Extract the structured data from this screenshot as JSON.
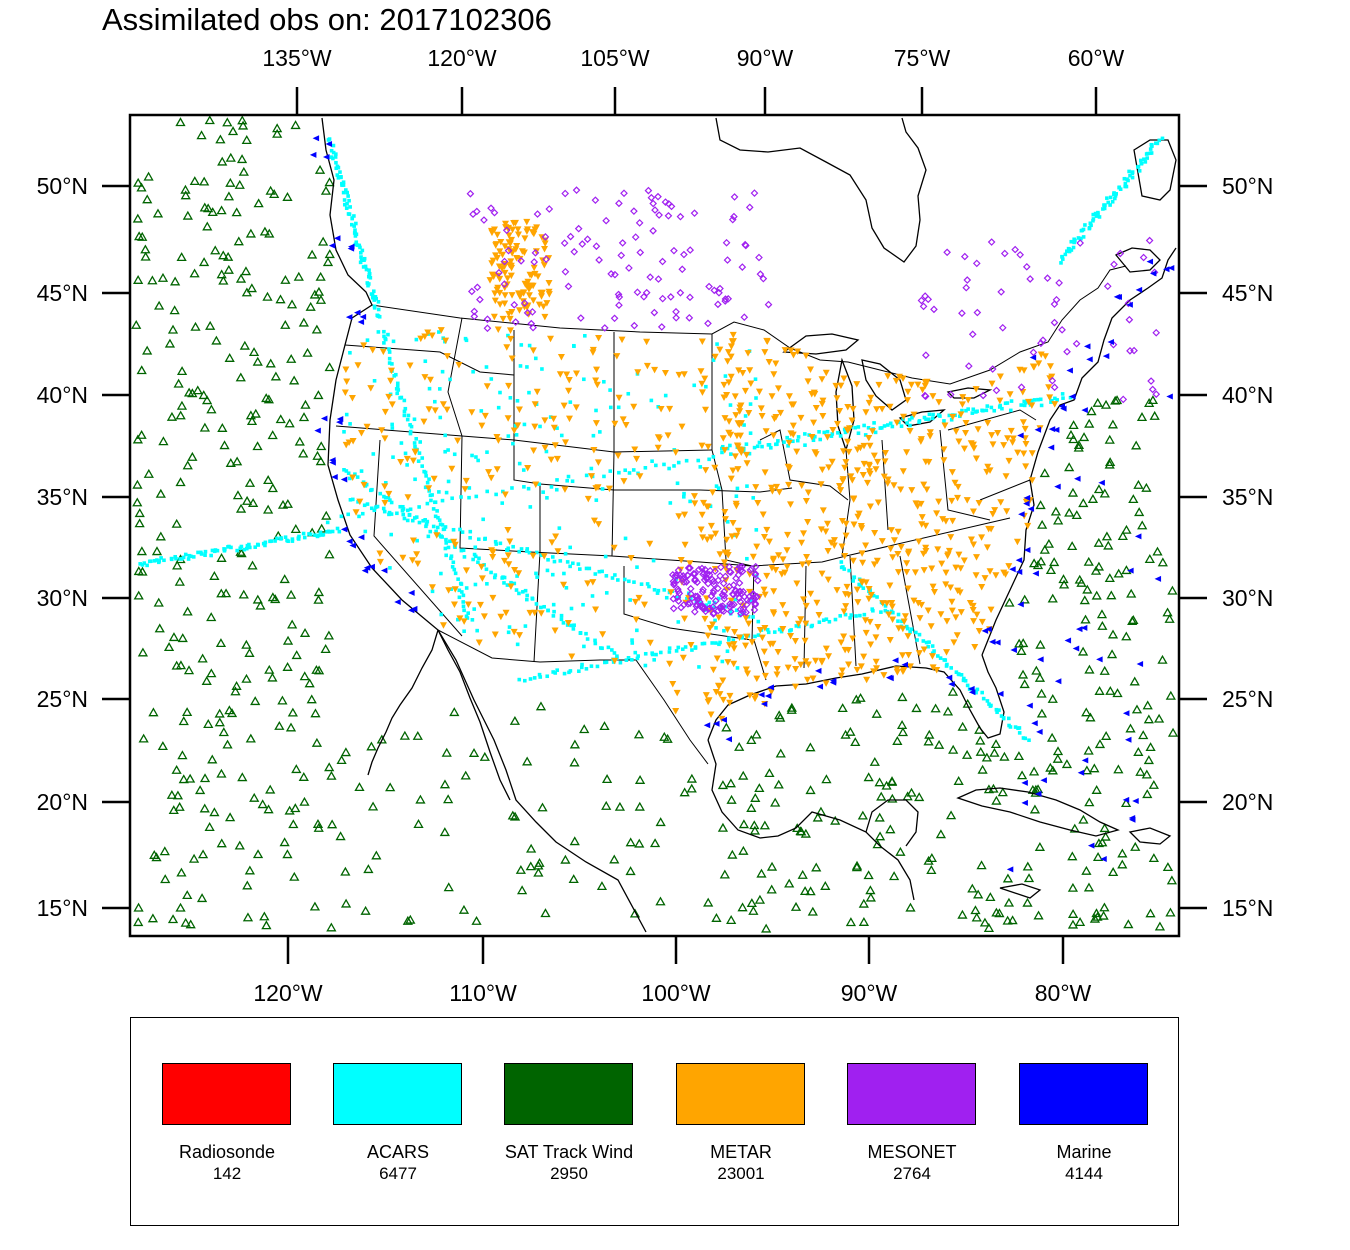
{
  "title": "Assimilated obs on: 2017102306",
  "map": {
    "top_lon_labels": [
      "135°W",
      "120°W",
      "105°W",
      "90°W",
      "75°W",
      "60°W"
    ],
    "bottom_lon_labels": [
      "120°W",
      "110°W",
      "100°W",
      "90°W",
      "80°W"
    ],
    "lat_labels": [
      "50°N",
      "45°N",
      "40°N",
      "35°N",
      "30°N",
      "25°N",
      "20°N",
      "15°N"
    ]
  },
  "legend": {
    "items": [
      {
        "name": "Radiosonde",
        "count": "142",
        "color": "#ff0000"
      },
      {
        "name": "ACARS",
        "count": "6477",
        "color": "#00ffff"
      },
      {
        "name": "SAT Track Wind",
        "count": "2950",
        "color": "#006400"
      },
      {
        "name": "METAR",
        "count": "23001",
        "color": "#ffa500"
      },
      {
        "name": "MESONET",
        "count": "2764",
        "color": "#a020f0"
      },
      {
        "name": "Marine",
        "count": "4144",
        "color": "#0000ff"
      }
    ]
  }
}
